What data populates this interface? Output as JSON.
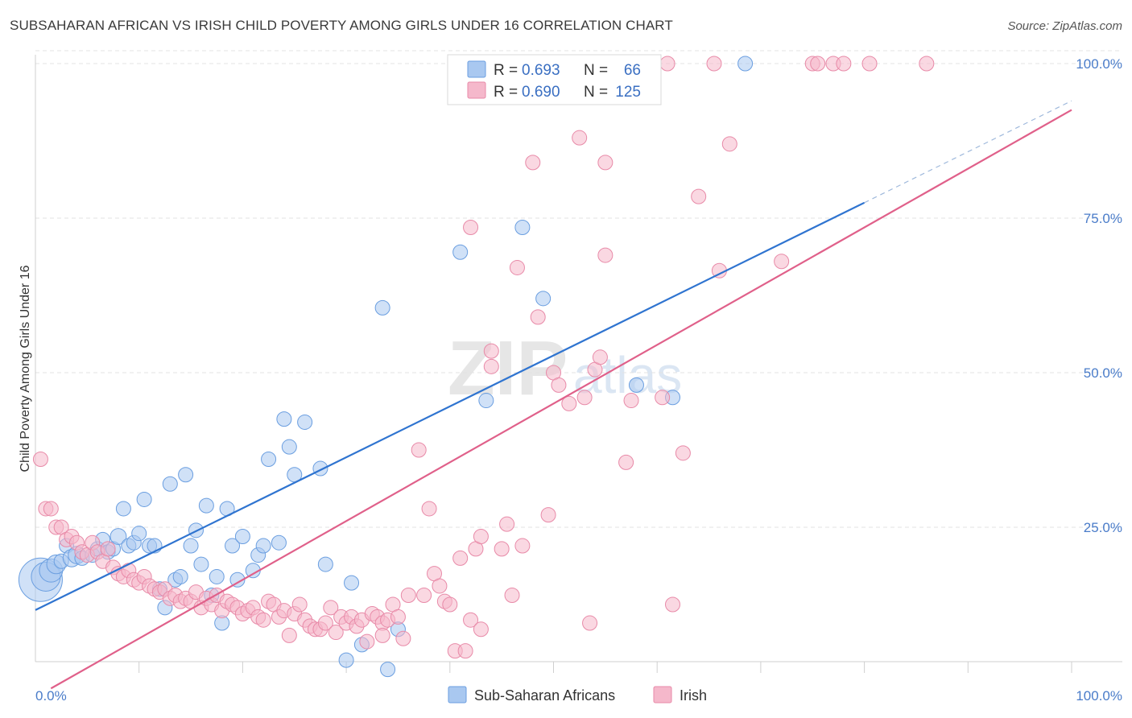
{
  "header": {
    "title": "SUBSAHARAN AFRICAN VS IRISH CHILD POVERTY AMONG GIRLS UNDER 16 CORRELATION CHART",
    "source": "Source: ZipAtlas.com"
  },
  "watermark": {
    "zip": "ZIP",
    "atlas": "atlas"
  },
  "legend": {
    "r_label": "R =",
    "n_label": "N =",
    "rows": [
      {
        "r": "0.693",
        "n": "66",
        "color": "#a9c8f0"
      },
      {
        "r": "0.690",
        "n": "125",
        "color": "#f5b8cb"
      }
    ]
  },
  "colors": {
    "blue_fill": "#a9c8f0",
    "blue_stroke": "#6a9ee0",
    "blue_line": "#2f74d0",
    "pink_fill": "#f5b8cb",
    "pink_stroke": "#e88aa8",
    "pink_line": "#e0608a",
    "tick_text": "#4a7cc9"
  },
  "chart_data": {
    "type": "scatter",
    "title": "SUBSAHARAN AFRICAN VS IRISH CHILD POVERTY AMONG GIRLS UNDER 16 CORRELATION CHART",
    "xlabel": "",
    "ylabel": "Child Poverty Among Girls Under 16",
    "xlim": [
      0,
      100
    ],
    "ylim": [
      0,
      100
    ],
    "x_tick_labels": [
      "0.0%",
      "100.0%"
    ],
    "y_tick_labels": [
      "25.0%",
      "50.0%",
      "75.0%",
      "100.0%"
    ],
    "y_ticks": [
      25,
      50,
      75,
      100
    ],
    "grid": true,
    "legend_position": "top-center",
    "series": [
      {
        "name": "Sub-Saharan Africans",
        "r": 0.693,
        "n": 66,
        "trend": {
          "x0": 0,
          "y0": 11.6,
          "x1": 80,
          "y1": 77.5,
          "dashed_to_x": 100
        },
        "points": [
          [
            0.5,
            16.5,
            3
          ],
          [
            1.0,
            17.0,
            2
          ],
          [
            1.5,
            18.0,
            1.6
          ],
          [
            2.0,
            19.0,
            1.3
          ],
          [
            2.5,
            19.5,
            1
          ],
          [
            3.0,
            22.0,
            1
          ],
          [
            3.5,
            20.0,
            1.2
          ],
          [
            4.0,
            20.5,
            1.2
          ],
          [
            4.5,
            20.0,
            1
          ],
          [
            5.5,
            20.5,
            1
          ],
          [
            6.0,
            21.5,
            1
          ],
          [
            6.5,
            23.0,
            1
          ],
          [
            7.0,
            21.0,
            1
          ],
          [
            7.5,
            21.5,
            1
          ],
          [
            8.0,
            23.5,
            1.1
          ],
          [
            8.5,
            28.0,
            1
          ],
          [
            9.0,
            22.0,
            1
          ],
          [
            9.5,
            22.5,
            1
          ],
          [
            10.0,
            24.0,
            1
          ],
          [
            10.5,
            29.5,
            1
          ],
          [
            11.0,
            22.0,
            1
          ],
          [
            11.5,
            22.0,
            1
          ],
          [
            12.0,
            15.0,
            1
          ],
          [
            12.5,
            12.0,
            1
          ],
          [
            13.0,
            32.0,
            1
          ],
          [
            13.5,
            16.5,
            1
          ],
          [
            14.0,
            17.0,
            1
          ],
          [
            14.5,
            33.5,
            1
          ],
          [
            15.0,
            22.0,
            1
          ],
          [
            15.5,
            24.5,
            1
          ],
          [
            16.0,
            19.0,
            1
          ],
          [
            16.5,
            28.5,
            1
          ],
          [
            17.0,
            14.0,
            1
          ],
          [
            17.5,
            17.0,
            1
          ],
          [
            18.0,
            9.5,
            1
          ],
          [
            18.5,
            28.0,
            1
          ],
          [
            19.0,
            22.0,
            1
          ],
          [
            20.0,
            23.5,
            1
          ],
          [
            19.5,
            16.5,
            1
          ],
          [
            21.0,
            18.0,
            1
          ],
          [
            21.5,
            20.5,
            1
          ],
          [
            22.0,
            22.0,
            1
          ],
          [
            22.5,
            36.0,
            1
          ],
          [
            23.5,
            22.5,
            1
          ],
          [
            24.0,
            42.5,
            1
          ],
          [
            24.5,
            38.0,
            1
          ],
          [
            25.0,
            33.5,
            1
          ],
          [
            26.0,
            42.0,
            1
          ],
          [
            27.5,
            34.5,
            1
          ],
          [
            28.0,
            19.0,
            1
          ],
          [
            30.0,
            3.5,
            1
          ],
          [
            30.5,
            16.0,
            1
          ],
          [
            31.5,
            6.0,
            1
          ],
          [
            33.5,
            60.5,
            1
          ],
          [
            34.0,
            2.0,
            1
          ],
          [
            35.0,
            8.5,
            1
          ],
          [
            43.5,
            45.5,
            1
          ],
          [
            41.0,
            69.5,
            1
          ],
          [
            47.0,
            73.5,
            1
          ],
          [
            49.0,
            62.0,
            1
          ],
          [
            58.0,
            48.0,
            1
          ],
          [
            61.5,
            46.0,
            1
          ],
          [
            68.5,
            100.0,
            1
          ],
          [
            59.5,
            100.0,
            1
          ],
          [
            56.5,
            100.0,
            1
          ],
          [
            54.5,
            100.0,
            1
          ]
        ]
      },
      {
        "name": "Irish",
        "r": 0.69,
        "n": 125,
        "trend": {
          "x0": 0,
          "y0": -2.5,
          "x1": 100,
          "y1": 92.5
        },
        "points": [
          [
            0.5,
            36.0,
            1
          ],
          [
            1.0,
            28.0,
            1
          ],
          [
            1.5,
            28.0,
            1
          ],
          [
            2.0,
            25.0,
            1
          ],
          [
            2.5,
            25.0,
            1
          ],
          [
            3.0,
            23.0,
            1
          ],
          [
            3.5,
            23.5,
            1
          ],
          [
            4.0,
            22.5,
            1
          ],
          [
            4.5,
            21.0,
            1
          ],
          [
            5.0,
            20.5,
            1
          ],
          [
            5.5,
            22.5,
            1
          ],
          [
            6.0,
            21.0,
            1
          ],
          [
            6.5,
            19.5,
            1
          ],
          [
            7.0,
            21.5,
            1
          ],
          [
            7.5,
            18.5,
            1
          ],
          [
            8.0,
            17.5,
            1
          ],
          [
            8.5,
            17.0,
            1
          ],
          [
            9.0,
            18.0,
            1
          ],
          [
            9.5,
            16.5,
            1
          ],
          [
            10.0,
            16.0,
            1
          ],
          [
            10.5,
            17.0,
            1
          ],
          [
            11.0,
            15.5,
            1
          ],
          [
            11.5,
            15.0,
            1
          ],
          [
            12.0,
            14.5,
            1
          ],
          [
            12.5,
            15.0,
            1
          ],
          [
            13.0,
            13.5,
            1
          ],
          [
            13.5,
            14.0,
            1
          ],
          [
            14.0,
            13.0,
            1
          ],
          [
            14.5,
            13.5,
            1
          ],
          [
            15.0,
            13.0,
            1
          ],
          [
            15.5,
            14.5,
            1
          ],
          [
            16.0,
            12.0,
            1
          ],
          [
            16.5,
            13.5,
            1
          ],
          [
            17.0,
            12.5,
            1
          ],
          [
            17.5,
            14.0,
            1
          ],
          [
            18.0,
            11.5,
            1
          ],
          [
            18.5,
            13.0,
            1
          ],
          [
            19.0,
            12.5,
            1
          ],
          [
            19.5,
            12.0,
            1
          ],
          [
            20.0,
            11.0,
            1
          ],
          [
            20.5,
            11.5,
            1
          ],
          [
            21.0,
            12.0,
            1
          ],
          [
            21.5,
            10.5,
            1
          ],
          [
            22.0,
            10.0,
            1
          ],
          [
            22.5,
            13.0,
            1
          ],
          [
            23.0,
            12.5,
            1
          ],
          [
            23.5,
            10.5,
            1
          ],
          [
            24.0,
            11.5,
            1
          ],
          [
            24.5,
            7.5,
            1
          ],
          [
            25.0,
            11.0,
            1
          ],
          [
            25.5,
            12.5,
            1
          ],
          [
            26.0,
            10.0,
            1
          ],
          [
            26.5,
            9.0,
            1
          ],
          [
            27.0,
            8.5,
            1
          ],
          [
            27.5,
            8.5,
            1
          ],
          [
            28.0,
            9.5,
            1
          ],
          [
            28.5,
            12.0,
            1
          ],
          [
            29.0,
            8.0,
            1
          ],
          [
            29.5,
            10.5,
            1
          ],
          [
            30.0,
            9.5,
            1
          ],
          [
            30.5,
            10.5,
            1
          ],
          [
            31.0,
            9.0,
            1
          ],
          [
            31.5,
            10.0,
            1
          ],
          [
            32.0,
            6.5,
            1
          ],
          [
            32.5,
            11.0,
            1
          ],
          [
            33.0,
            10.5,
            1
          ],
          [
            33.5,
            9.5,
            1
          ],
          [
            34.0,
            10.0,
            1
          ],
          [
            34.5,
            12.5,
            1
          ],
          [
            35.0,
            10.5,
            1
          ],
          [
            35.5,
            7.0,
            1
          ],
          [
            36.0,
            14.0,
            1
          ],
          [
            37.0,
            37.5,
            1
          ],
          [
            37.5,
            14.0,
            1
          ],
          [
            38.0,
            28.0,
            1
          ],
          [
            38.5,
            17.5,
            1
          ],
          [
            39.0,
            15.5,
            1
          ],
          [
            39.5,
            13.0,
            1
          ],
          [
            40.0,
            12.5,
            1
          ],
          [
            40.5,
            5.0,
            1
          ],
          [
            41.0,
            20.0,
            1
          ],
          [
            41.5,
            5.0,
            1
          ],
          [
            42.0,
            10.0,
            1
          ],
          [
            42.5,
            21.5,
            1
          ],
          [
            43.0,
            23.5,
            1
          ],
          [
            44.0,
            53.5,
            1
          ],
          [
            44.0,
            51.0,
            1
          ],
          [
            45.0,
            21.5,
            1
          ],
          [
            45.5,
            25.5,
            1
          ],
          [
            46.0,
            14.0,
            1
          ],
          [
            46.5,
            67.0,
            1
          ],
          [
            47.0,
            22.0,
            1
          ],
          [
            48.0,
            84.0,
            1
          ],
          [
            48.5,
            59.0,
            1
          ],
          [
            49.5,
            27.0,
            1
          ],
          [
            50.0,
            50.0,
            1
          ],
          [
            50.5,
            48.0,
            1
          ],
          [
            51.5,
            45.0,
            1
          ],
          [
            52.5,
            88.0,
            1
          ],
          [
            53.0,
            46.0,
            1
          ],
          [
            53.5,
            9.5,
            1
          ],
          [
            54.0,
            50.5,
            1
          ],
          [
            54.5,
            52.5,
            1
          ],
          [
            55.0,
            69.0,
            1
          ],
          [
            55.0,
            84.0,
            1
          ],
          [
            57.5,
            45.5,
            1
          ],
          [
            57.0,
            35.5,
            1
          ],
          [
            60.5,
            46.0,
            1
          ],
          [
            61.5,
            12.5,
            1
          ],
          [
            62.5,
            37.0,
            1
          ],
          [
            64.0,
            78.5,
            1
          ],
          [
            66.0,
            66.5,
            1
          ],
          [
            67.0,
            87.0,
            1
          ],
          [
            72.0,
            68.0,
            1
          ],
          [
            75.0,
            100.0,
            1
          ],
          [
            75.5,
            100.0,
            1
          ],
          [
            77.0,
            100.0,
            1
          ],
          [
            78.0,
            100.0,
            1
          ],
          [
            80.5,
            100.0,
            1
          ],
          [
            86.0,
            100.0,
            1
          ],
          [
            42.0,
            73.5,
            1
          ],
          [
            65.5,
            100.0,
            1
          ],
          [
            61.0,
            100.0,
            1
          ],
          [
            33.5,
            7.5,
            1
          ],
          [
            43.0,
            8.5,
            1
          ]
        ]
      }
    ]
  },
  "bottom_legend": [
    {
      "label": "Sub-Saharan Africans",
      "color": "#a9c8f0"
    },
    {
      "label": "Irish",
      "color": "#f5b8cb"
    }
  ]
}
